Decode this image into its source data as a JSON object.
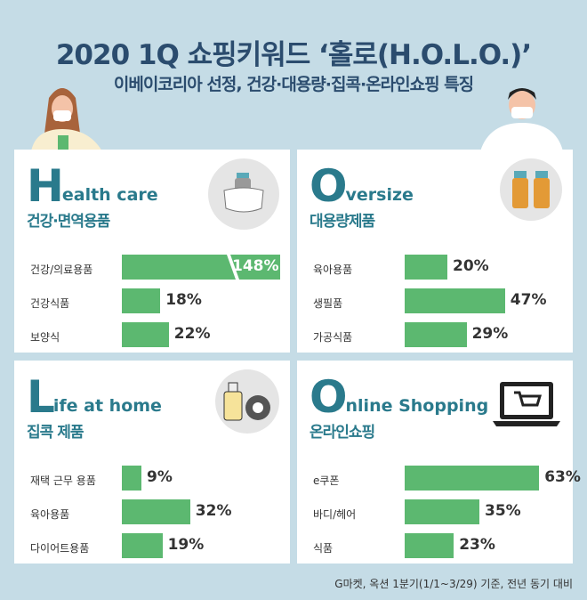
{
  "header": {
    "title": "2020 1Q 쇼핑키워드 ‘홀로(H.O.L.O.)’",
    "subtitle": "이베이코리아 선정, 건강·대용량·집콕·온라인쇼핑 특징"
  },
  "colors": {
    "bar": "#5cb870",
    "heading": "#2a7a8c",
    "title": "#2b4c6e",
    "background": "#c5dce6"
  },
  "chart_data": [
    {
      "type": "bar",
      "orientation": "horizontal",
      "big_letter": "H",
      "title": "ealth care",
      "subtitle": "건강·면역용품",
      "icon": "mask-bottle-icon",
      "categories": [
        "건강/의료용품",
        "건강식품",
        "보양식"
      ],
      "values": [
        148,
        18,
        22
      ],
      "labels": [
        "148%",
        "18%",
        "22%"
      ]
    },
    {
      "type": "bar",
      "orientation": "horizontal",
      "big_letter": "O",
      "title": "versize",
      "subtitle": "대용량제품",
      "icon": "bottles-icon",
      "categories": [
        "육아용품",
        "생필품",
        "가공식품"
      ],
      "values": [
        20,
        47,
        29
      ],
      "labels": [
        "20%",
        "47%",
        "29%"
      ]
    },
    {
      "type": "bar",
      "orientation": "horizontal",
      "big_letter": "L",
      "title": "ife at home",
      "subtitle": "집콕 제품",
      "icon": "bottle-tape-icon",
      "categories": [
        "재택 근무 용품",
        "육아용품",
        "다이어트용품"
      ],
      "values": [
        9,
        32,
        19
      ],
      "labels": [
        "9%",
        "32%",
        "19%"
      ]
    },
    {
      "type": "bar",
      "orientation": "horizontal",
      "big_letter": "O",
      "title": "nline Shopping",
      "subtitle": "온라인쇼핑",
      "icon": "laptop-cart-icon",
      "categories": [
        "e쿠폰",
        "바디/헤어",
        "식품"
      ],
      "values": [
        63,
        35,
        23
      ],
      "labels": [
        "63%",
        "35%",
        "23%"
      ]
    }
  ],
  "footer": "G마켓, 옥션 1분기(1/1~3/29) 기준, 전년 동기 대비"
}
